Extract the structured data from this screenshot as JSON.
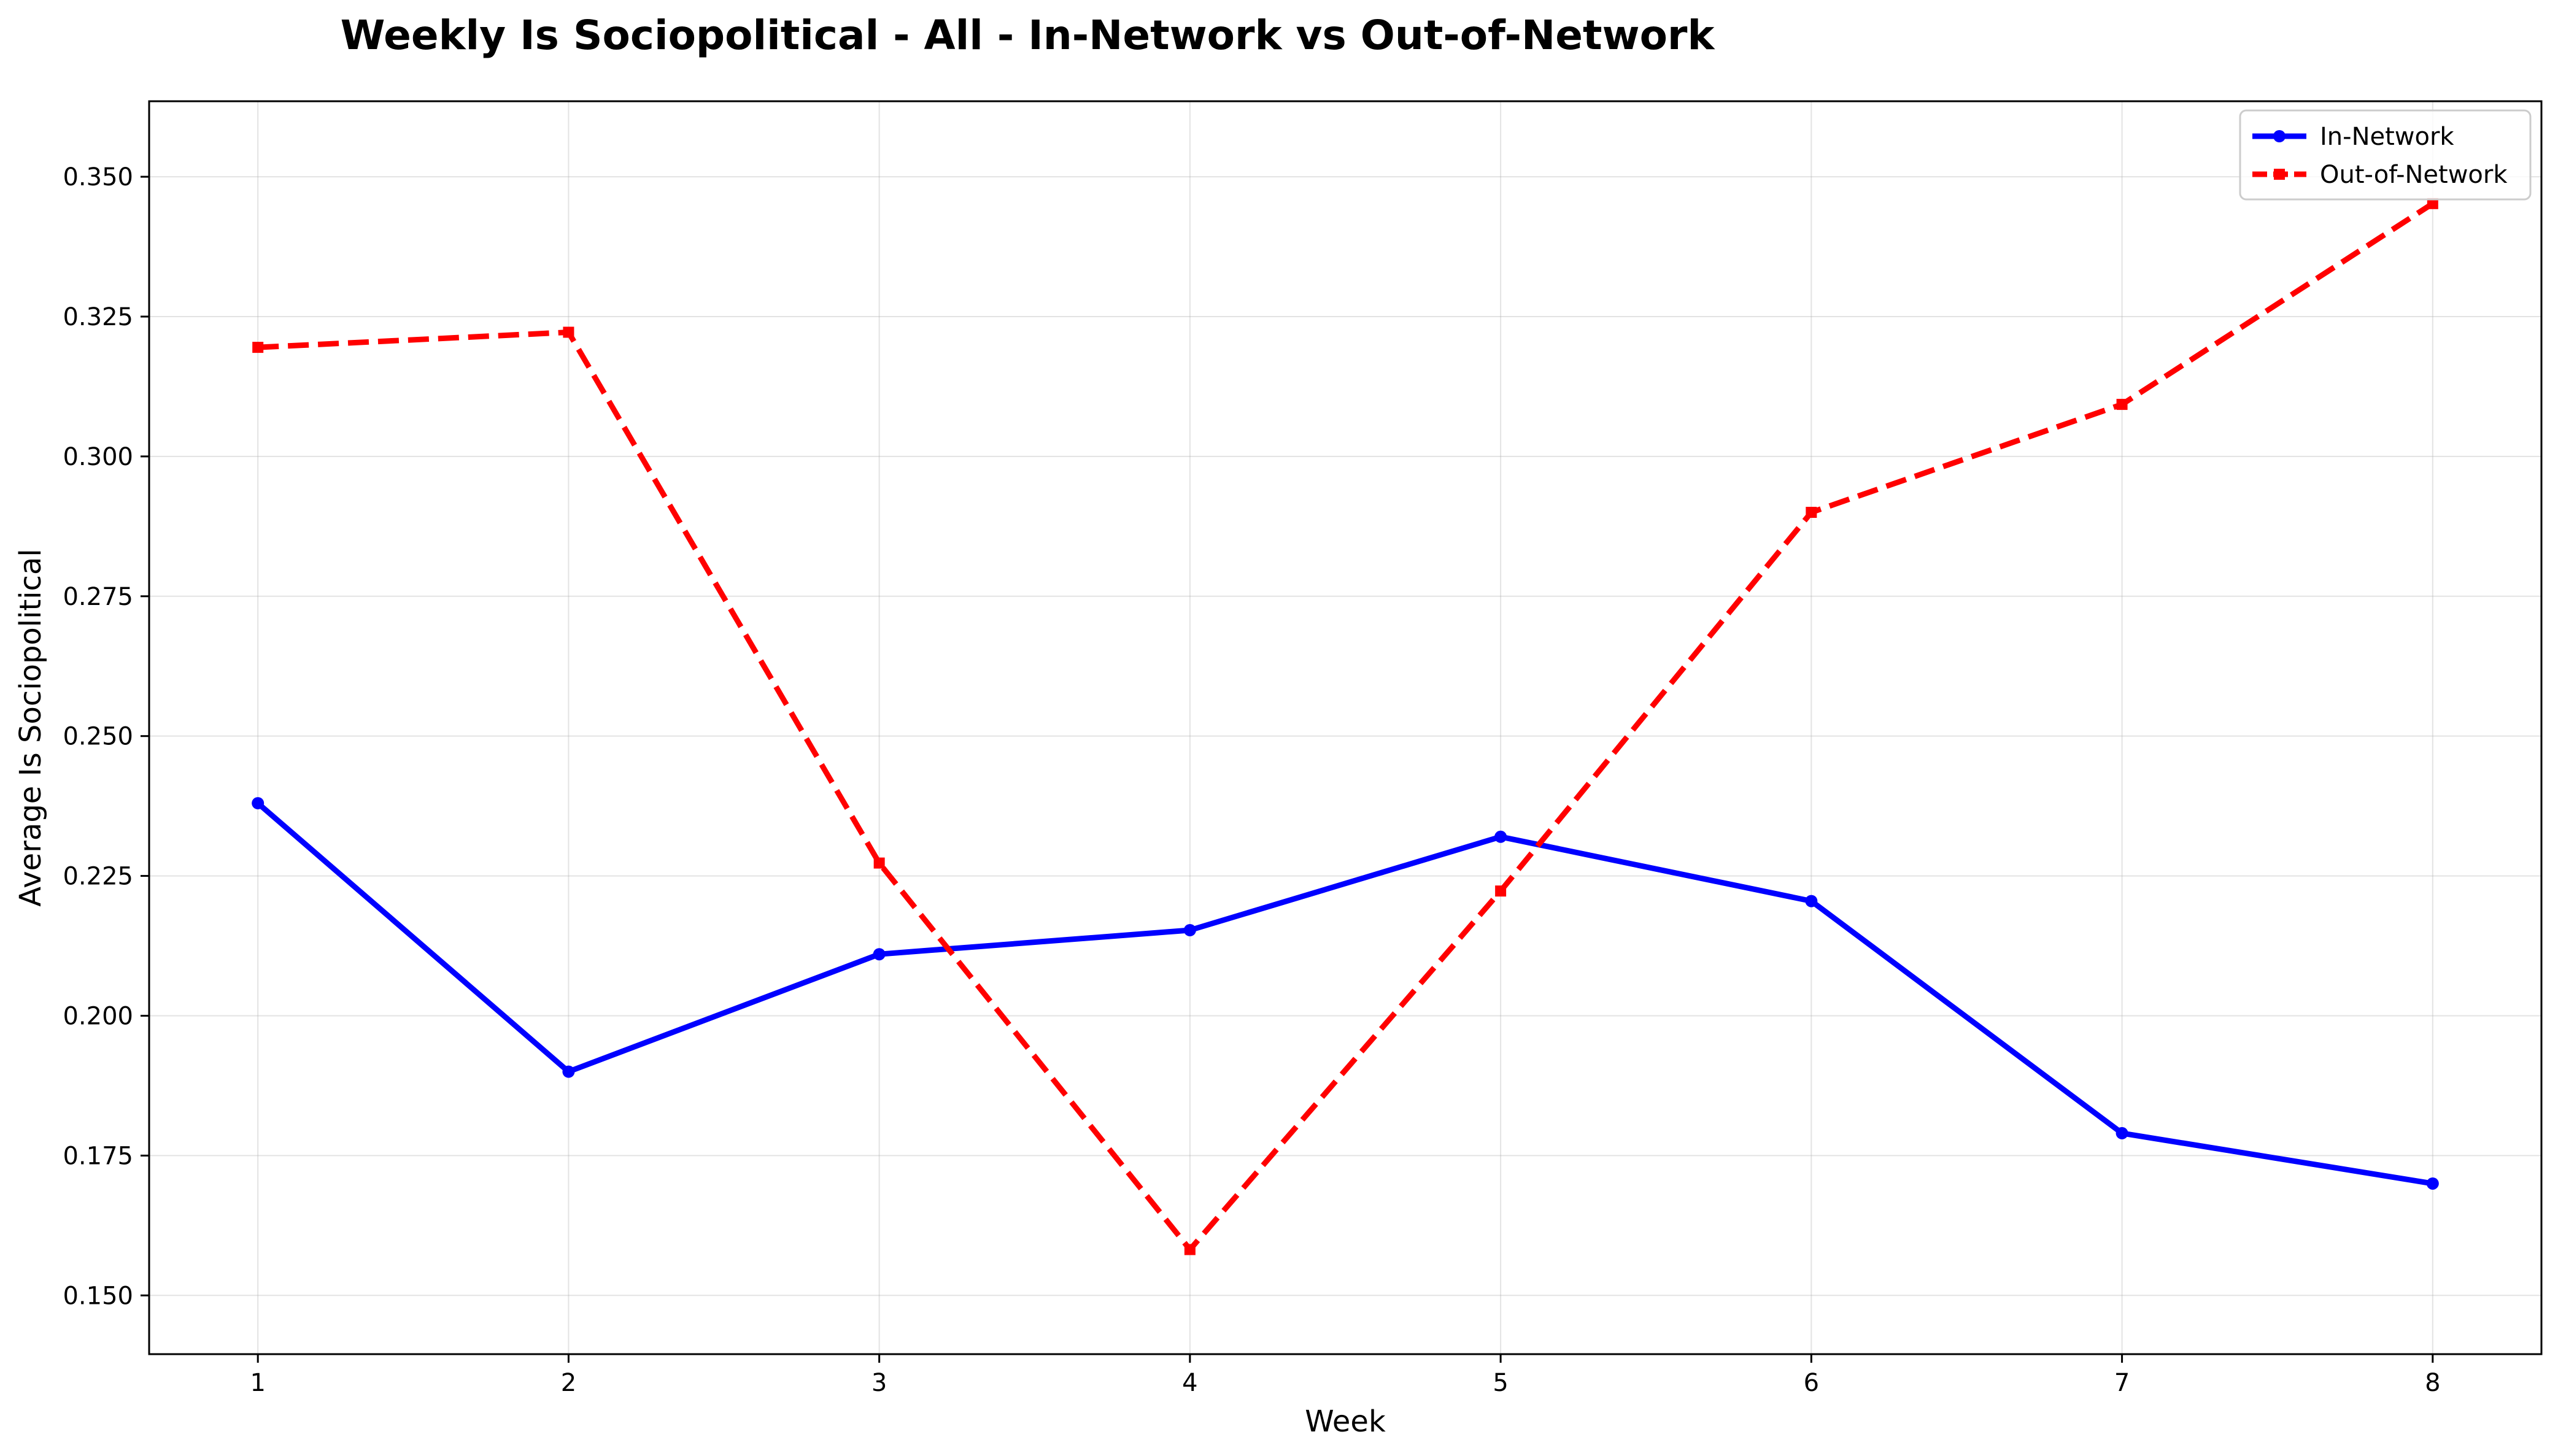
{
  "chart_data": {
    "type": "line",
    "title": "Weekly Is Sociopolitical - All - In-Network vs Out-of-Network",
    "xlabel": "Week",
    "ylabel": "Average Is Sociopolitical",
    "x": [
      1,
      2,
      3,
      4,
      5,
      6,
      7,
      8
    ],
    "xlim": [
      0.65,
      8.35
    ],
    "ylim": [
      0.1395,
      0.3635
    ],
    "xticks": [
      1,
      2,
      3,
      4,
      5,
      6,
      7,
      8
    ],
    "xtick_labels": [
      "1",
      "2",
      "3",
      "4",
      "5",
      "6",
      "7",
      "8"
    ],
    "yticks": [
      0.15,
      0.175,
      0.2,
      0.225,
      0.25,
      0.275,
      0.3,
      0.325,
      0.35
    ],
    "ytick_labels": [
      "0.150",
      "0.175",
      "0.200",
      "0.225",
      "0.250",
      "0.275",
      "0.300",
      "0.325",
      "0.350"
    ],
    "grid": true,
    "legend_position": "top-right",
    "series": [
      {
        "name": "In-Network",
        "color": "#0000ff",
        "line_style": "solid",
        "marker": "circle",
        "values": [
          0.238,
          0.19,
          0.211,
          0.2153,
          0.232,
          0.2205,
          0.179,
          0.17
        ]
      },
      {
        "name": "Out-of-Network",
        "color": "#ff0000",
        "line_style": "dashed",
        "marker": "square",
        "values": [
          0.3195,
          0.3222,
          0.2273,
          0.1582,
          0.2223,
          0.29,
          0.3093,
          0.3452
        ]
      }
    ]
  }
}
